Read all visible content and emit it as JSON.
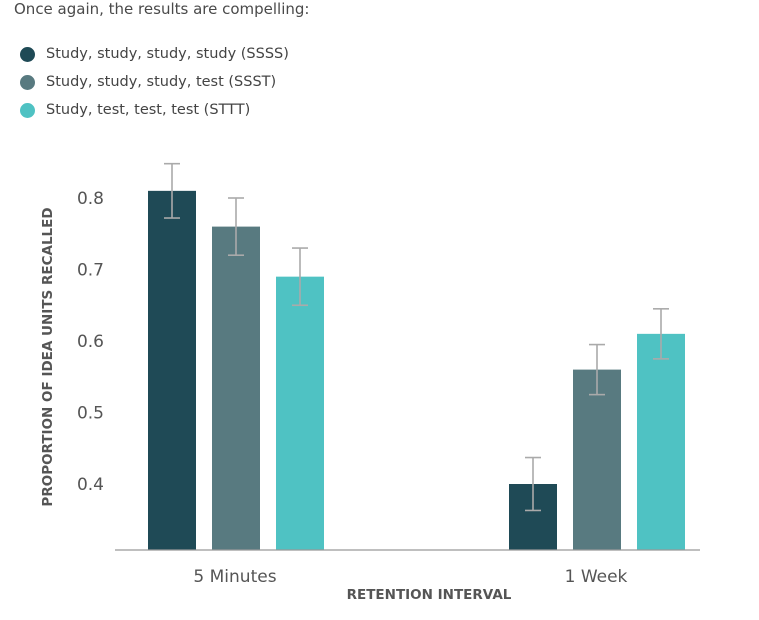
{
  "intro_text": "Once again, the results are compelling:",
  "colors": {
    "ssss": "#1f4a56",
    "ssst": "#587a80",
    "sttt": "#4fc2c3",
    "error_bar": "#aaaaaa",
    "axis": "#999999"
  },
  "chart_data": {
    "type": "bar",
    "title": "",
    "xlabel": "RETENTION INTERVAL",
    "ylabel": "PROPORTION OF IDEA UNITS RECALLED",
    "categories": [
      "5 Minutes",
      "1 Week"
    ],
    "ylim": [
      0.31,
      0.85
    ],
    "yticks": [
      "0.8",
      "0.7",
      "0.6",
      "0.5",
      "0.4"
    ],
    "ytick_values": [
      0.8,
      0.7,
      0.6,
      0.5,
      0.4
    ],
    "legend_position": "top-left",
    "grid": false,
    "series": [
      {
        "name": "Study, study, study, study (SSSS)",
        "color": "#1f4a56",
        "values": [
          0.81,
          0.4
        ],
        "errors": [
          0.038,
          0.037
        ]
      },
      {
        "name": "Study, study, study, test (SSST)",
        "color": "#587a80",
        "values": [
          0.76,
          0.56
        ],
        "errors": [
          0.04,
          0.035
        ]
      },
      {
        "name": "Study, test, test, test (STTT)",
        "color": "#4fc2c3",
        "values": [
          0.69,
          0.61
        ],
        "errors": [
          0.04,
          0.035
        ]
      }
    ]
  }
}
